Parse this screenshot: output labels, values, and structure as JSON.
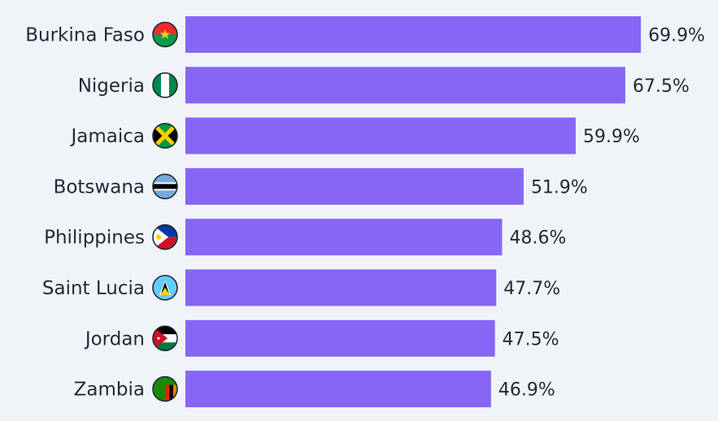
{
  "chart_data": {
    "type": "bar",
    "orientation": "horizontal",
    "categories": [
      "Burkina Faso",
      "Nigeria",
      "Jamaica",
      "Botswana",
      "Philippines",
      "Saint Lucia",
      "Jordan",
      "Zambia"
    ],
    "values": [
      69.9,
      67.5,
      59.9,
      51.9,
      48.6,
      47.7,
      47.5,
      46.9
    ],
    "value_labels": [
      "69.9%",
      "67.5%",
      "59.9%",
      "51.9%",
      "48.6%",
      "47.7%",
      "47.5%",
      "46.9%"
    ],
    "flag_icons": [
      "burkina-faso-flag-icon",
      "nigeria-flag-icon",
      "jamaica-flag-icon",
      "botswana-flag-icon",
      "philippines-flag-icon",
      "saint-lucia-flag-icon",
      "jordan-flag-icon",
      "zambia-flag-icon"
    ],
    "xlim": [
      0,
      70
    ],
    "grid": false,
    "colors": {
      "bar": "#8866f5",
      "background": "#f0f4f8",
      "text": "#1e2b37"
    }
  }
}
